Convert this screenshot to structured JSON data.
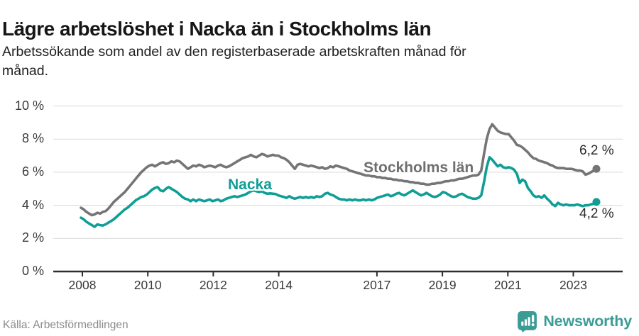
{
  "header": {
    "title": "Lägre arbetslöshet i Nacka än i Stockholms län",
    "subtitle": "Arbetssökande som andel av den registerbaserade arbetskraften månad för månad.",
    "subtitle_lines": [
      "Arbetssökande som andel av den registerbaserade arbetskraften månad för",
      "månad."
    ]
  },
  "footer": {
    "source": "Källa: Arbetsförmedlingen",
    "brand": "Newsworthy",
    "brand_color": "#3b9c96"
  },
  "chart_data": {
    "type": "line",
    "title": "Lägre arbetslöshet i Nacka än i Stockholms län",
    "subtitle": "Arbetssökande som andel av den registerbaserade arbetskraften månad för månad.",
    "unit": "%",
    "x_start": "2008-01",
    "x_end": "2023-09",
    "frequency": "monthly",
    "ylim": [
      0,
      10
    ],
    "grid": "horizontal",
    "colors": {
      "nacka_teal": "#0f9e96",
      "stockholm_gray": "#757578",
      "grid_gray": "#d9d9d9",
      "axis_dark": "#2e2e2e"
    },
    "y_ticks": [
      {
        "value": 0,
        "label": "0 %"
      },
      {
        "value": 2,
        "label": "2 %"
      },
      {
        "value": 4,
        "label": "4 %"
      },
      {
        "value": 6,
        "label": "6 %"
      },
      {
        "value": 8,
        "label": "8 %"
      },
      {
        "value": 10,
        "label": "10 %"
      }
    ],
    "x_ticks": [
      {
        "year": 2008,
        "label": "2008"
      },
      {
        "year": 2010,
        "label": "2010"
      },
      {
        "year": 2012,
        "label": "2012"
      },
      {
        "year": 2014,
        "label": "2014"
      },
      {
        "year": 2017,
        "label": "2017"
      },
      {
        "year": 2019,
        "label": "2019"
      },
      {
        "year": 2021,
        "label": "2021"
      },
      {
        "year": 2023,
        "label": "2023"
      }
    ],
    "series": [
      {
        "name": "Stockholms län",
        "color": "#757578",
        "end_label": "6,2 %",
        "end_value": 6.2,
        "values": [
          3.85,
          3.75,
          3.6,
          3.5,
          3.4,
          3.45,
          3.55,
          3.5,
          3.6,
          3.65,
          3.8,
          4.0,
          4.2,
          4.35,
          4.5,
          4.65,
          4.8,
          5.0,
          5.2,
          5.4,
          5.6,
          5.8,
          6.0,
          6.15,
          6.3,
          6.4,
          6.45,
          6.35,
          6.45,
          6.55,
          6.6,
          6.5,
          6.55,
          6.65,
          6.6,
          6.7,
          6.65,
          6.5,
          6.35,
          6.2,
          6.3,
          6.4,
          6.35,
          6.45,
          6.4,
          6.3,
          6.35,
          6.4,
          6.35,
          6.3,
          6.4,
          6.45,
          6.35,
          6.3,
          6.35,
          6.45,
          6.55,
          6.65,
          6.75,
          6.85,
          6.9,
          6.95,
          7.05,
          6.95,
          6.9,
          7.0,
          7.1,
          7.05,
          6.95,
          7.0,
          7.05,
          7.0,
          7.0,
          6.9,
          6.85,
          6.75,
          6.6,
          6.4,
          6.2,
          6.45,
          6.5,
          6.45,
          6.4,
          6.35,
          6.4,
          6.35,
          6.3,
          6.25,
          6.3,
          6.2,
          6.25,
          6.35,
          6.3,
          6.4,
          6.35,
          6.3,
          6.25,
          6.2,
          6.1,
          6.05,
          6.0,
          5.95,
          5.9,
          5.85,
          5.8,
          5.8,
          5.75,
          5.75,
          5.7,
          5.7,
          5.65,
          5.65,
          5.6,
          5.6,
          5.55,
          5.55,
          5.5,
          5.5,
          5.45,
          5.45,
          5.4,
          5.4,
          5.35,
          5.35,
          5.3,
          5.3,
          5.25,
          5.25,
          5.3,
          5.3,
          5.35,
          5.35,
          5.4,
          5.45,
          5.45,
          5.5,
          5.5,
          5.55,
          5.6,
          5.6,
          5.65,
          5.7,
          5.75,
          5.8,
          5.8,
          5.85,
          6.1,
          7.1,
          8.0,
          8.6,
          8.9,
          8.7,
          8.5,
          8.4,
          8.35,
          8.3,
          8.3,
          8.1,
          7.9,
          7.65,
          7.6,
          7.5,
          7.35,
          7.2,
          7.0,
          6.85,
          6.8,
          6.7,
          6.65,
          6.6,
          6.55,
          6.45,
          6.4,
          6.3,
          6.25,
          6.25,
          6.25,
          6.2,
          6.2,
          6.2,
          6.15,
          6.1,
          6.1,
          6.05,
          5.85,
          5.9,
          6.0,
          6.1,
          6.2
        ]
      },
      {
        "name": "Nacka",
        "color": "#0f9e96",
        "end_label": "4,2 %",
        "end_value": 4.2,
        "values": [
          3.25,
          3.15,
          3.0,
          2.9,
          2.8,
          2.7,
          2.85,
          2.8,
          2.78,
          2.85,
          2.95,
          3.05,
          3.15,
          3.3,
          3.45,
          3.6,
          3.75,
          3.85,
          4.0,
          4.15,
          4.3,
          4.4,
          4.5,
          4.55,
          4.65,
          4.8,
          4.95,
          5.05,
          5.1,
          4.9,
          4.85,
          5.0,
          5.1,
          5.0,
          4.9,
          4.8,
          4.65,
          4.5,
          4.4,
          4.35,
          4.25,
          4.35,
          4.25,
          4.35,
          4.3,
          4.25,
          4.3,
          4.35,
          4.25,
          4.3,
          4.35,
          4.25,
          4.3,
          4.4,
          4.45,
          4.5,
          4.55,
          4.5,
          4.55,
          4.6,
          4.65,
          4.75,
          4.85,
          4.9,
          4.85,
          4.8,
          4.85,
          4.75,
          4.7,
          4.72,
          4.7,
          4.68,
          4.6,
          4.55,
          4.5,
          4.45,
          4.55,
          4.45,
          4.4,
          4.45,
          4.5,
          4.45,
          4.5,
          4.45,
          4.5,
          4.45,
          4.55,
          4.5,
          4.55,
          4.7,
          4.75,
          4.65,
          4.6,
          4.5,
          4.4,
          4.35,
          4.35,
          4.3,
          4.35,
          4.3,
          4.35,
          4.3,
          4.3,
          4.35,
          4.3,
          4.35,
          4.3,
          4.35,
          4.45,
          4.5,
          4.55,
          4.6,
          4.65,
          4.55,
          4.6,
          4.7,
          4.75,
          4.65,
          4.6,
          4.7,
          4.8,
          4.9,
          4.8,
          4.7,
          4.6,
          4.65,
          4.75,
          4.65,
          4.55,
          4.5,
          4.55,
          4.65,
          4.8,
          4.75,
          4.65,
          4.55,
          4.5,
          4.55,
          4.65,
          4.7,
          4.6,
          4.5,
          4.45,
          4.4,
          4.4,
          4.45,
          4.6,
          5.4,
          6.3,
          6.9,
          6.75,
          6.55,
          6.35,
          6.45,
          6.3,
          6.25,
          6.3,
          6.25,
          6.15,
          5.9,
          5.35,
          5.55,
          5.45,
          5.05,
          4.85,
          4.6,
          4.5,
          4.55,
          4.45,
          4.6,
          4.4,
          4.25,
          4.05,
          3.95,
          4.15,
          4.05,
          4.0,
          4.05,
          4.0,
          4.0,
          4.0,
          4.05,
          4.0,
          3.95,
          4.0,
          4.0,
          4.05,
          4.1,
          4.2
        ]
      }
    ]
  }
}
